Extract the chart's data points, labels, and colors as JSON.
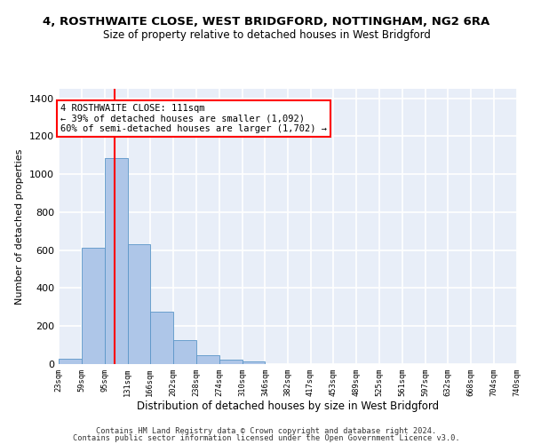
{
  "title": "4, ROSTHWAITE CLOSE, WEST BRIDGFORD, NOTTINGHAM, NG2 6RA",
  "subtitle": "Size of property relative to detached houses in West Bridgford",
  "xlabel": "Distribution of detached houses by size in West Bridgford",
  "ylabel": "Number of detached properties",
  "footnote1": "Contains HM Land Registry data © Crown copyright and database right 2024.",
  "footnote2": "Contains public sector information licensed under the Open Government Licence v3.0.",
  "bar_color": "#aec6e8",
  "bar_edge_color": "#5b96c8",
  "background_color": "#e8eef8",
  "grid_color": "#ffffff",
  "vline_x": 111,
  "vline_color": "red",
  "annotation_line1": "4 ROSTHWAITE CLOSE: 111sqm",
  "annotation_line2": "← 39% of detached houses are smaller (1,092)",
  "annotation_line3": "60% of semi-detached houses are larger (1,702) →",
  "bin_edges": [
    23,
    59,
    95,
    131,
    166,
    202,
    238,
    274,
    310,
    346,
    382,
    417,
    453,
    489,
    525,
    561,
    597,
    632,
    668,
    704,
    740
  ],
  "bin_heights": [
    30,
    615,
    1085,
    630,
    275,
    125,
    45,
    22,
    15,
    0,
    0,
    0,
    0,
    0,
    0,
    0,
    0,
    0,
    0,
    0
  ],
  "ylim": [
    0,
    1450
  ],
  "yticks": [
    0,
    200,
    400,
    600,
    800,
    1000,
    1200,
    1400
  ]
}
